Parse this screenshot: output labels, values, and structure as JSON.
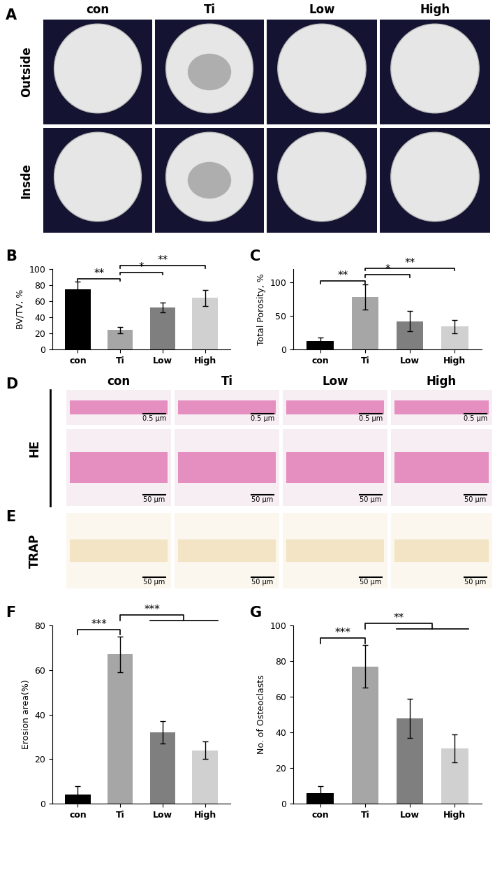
{
  "images": {
    "A": {
      "panel": "A",
      "columns": [
        "con",
        "Ti",
        "Low",
        "High"
      ],
      "rows": [
        "Outside",
        "Insde"
      ]
    },
    "D": {
      "panel": "D",
      "label": "HE",
      "columns": [
        "con",
        "Ti",
        "Low",
        "High"
      ],
      "scale_bars": [
        "0.5 μm",
        "50 μm"
      ]
    },
    "E": {
      "panel": "E",
      "label": "TRAP",
      "scale_bar": "50 μm"
    }
  },
  "chart_data": [
    {
      "type": "bar",
      "panel": "B",
      "y_label": "BV/TV, %",
      "categories": [
        "con",
        "Ti",
        "Low",
        "High"
      ],
      "values": [
        75,
        24,
        52,
        64
      ],
      "errors": [
        9,
        4,
        6,
        10
      ],
      "colors": [
        "#000000",
        "#a6a6a6",
        "#7f7f7f",
        "#d0d0d0"
      ],
      "ylim": [
        0,
        100
      ],
      "yticks": [
        0,
        20,
        40,
        60,
        80,
        100
      ],
      "annotations": [
        {
          "from": "con",
          "to": "Ti",
          "text": "**"
        },
        {
          "from": "Ti",
          "to": "Low",
          "text": "*"
        },
        {
          "from": "Ti",
          "to": "High",
          "text": "**"
        }
      ]
    },
    {
      "type": "bar",
      "panel": "C",
      "y_label": "Total Porosity, %",
      "categories": [
        "con",
        "Ti",
        "Low",
        "High"
      ],
      "values": [
        13,
        78,
        42,
        34
      ],
      "errors": [
        5,
        19,
        15,
        10
      ],
      "colors": [
        "#000000",
        "#a6a6a6",
        "#7f7f7f",
        "#d0d0d0"
      ],
      "ylim": [
        0,
        120
      ],
      "yticks": [
        0,
        50,
        100
      ],
      "annotations": [
        {
          "from": "con",
          "to": "Ti",
          "text": "**"
        },
        {
          "from": "Ti",
          "to": "Low",
          "text": "*"
        },
        {
          "from": "Ti",
          "to": "High",
          "text": "**"
        }
      ]
    },
    {
      "type": "bar",
      "panel": "F",
      "y_label": "Erosion area(%)",
      "categories": [
        "con",
        "Ti",
        "Low",
        "High"
      ],
      "values": [
        4,
        67,
        32,
        24
      ],
      "errors": [
        4,
        8,
        5,
        4
      ],
      "colors": [
        "#000000",
        "#a6a6a6",
        "#7f7f7f",
        "#d0d0d0"
      ],
      "ylim": [
        0,
        80
      ],
      "yticks": [
        0,
        20,
        40,
        60,
        80
      ],
      "annotations": [
        {
          "from": "con",
          "to": "Ti",
          "text": "***"
        },
        {
          "from": "Ti",
          "to": [
            "Low",
            "High"
          ],
          "text": "***"
        }
      ]
    },
    {
      "type": "bar",
      "panel": "G",
      "y_label": "No. of Osteoclasts",
      "categories": [
        "con",
        "Ti",
        "Low",
        "High"
      ],
      "values": [
        6,
        77,
        48,
        31
      ],
      "errors": [
        4,
        12,
        11,
        8
      ],
      "colors": [
        "#000000",
        "#a6a6a6",
        "#7f7f7f",
        "#d0d0d0"
      ],
      "ylim": [
        0,
        100
      ],
      "yticks": [
        0,
        20,
        40,
        60,
        80,
        100
      ],
      "annotations": [
        {
          "from": "con",
          "to": "Ti",
          "text": "***"
        },
        {
          "from": "Ti",
          "to": [
            "Low",
            "High"
          ],
          "text": "**"
        }
      ]
    }
  ]
}
